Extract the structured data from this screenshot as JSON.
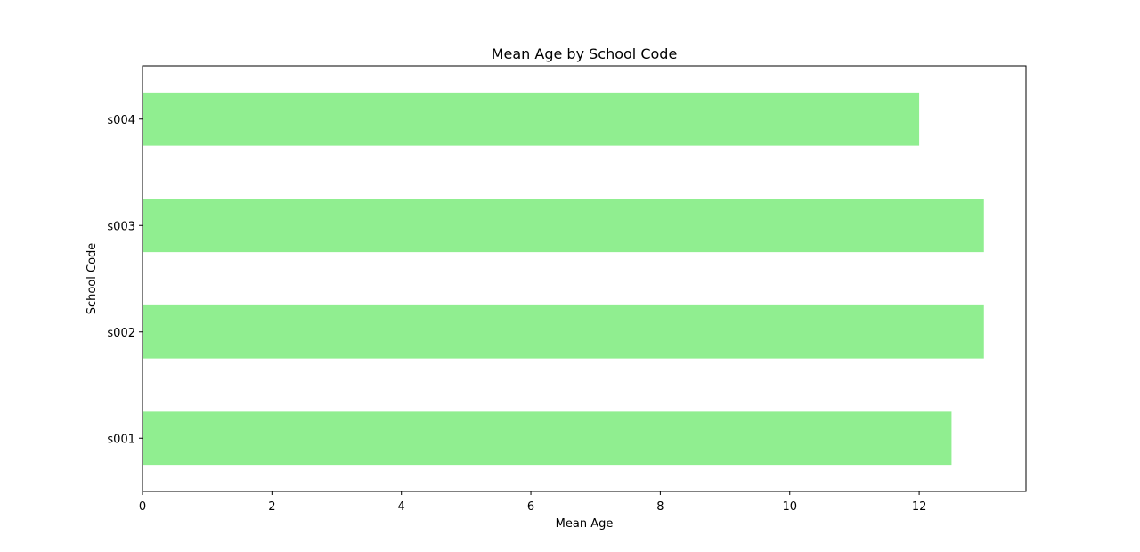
{
  "chart_data": {
    "type": "bar",
    "orientation": "horizontal",
    "title": "Mean Age by School Code",
    "xlabel": "Mean Age",
    "ylabel": "School Code",
    "categories": [
      "s001",
      "s002",
      "s003",
      "s004"
    ],
    "values": [
      12.5,
      13,
      13,
      12
    ],
    "xlim": [
      0,
      13.65
    ],
    "xticks": [
      0,
      2,
      4,
      6,
      8,
      10,
      12
    ],
    "xtick_labels": [
      "0",
      "2",
      "4",
      "6",
      "8",
      "10",
      "12"
    ],
    "bar_color": "#90ee90",
    "grid": false,
    "legend": "none"
  }
}
